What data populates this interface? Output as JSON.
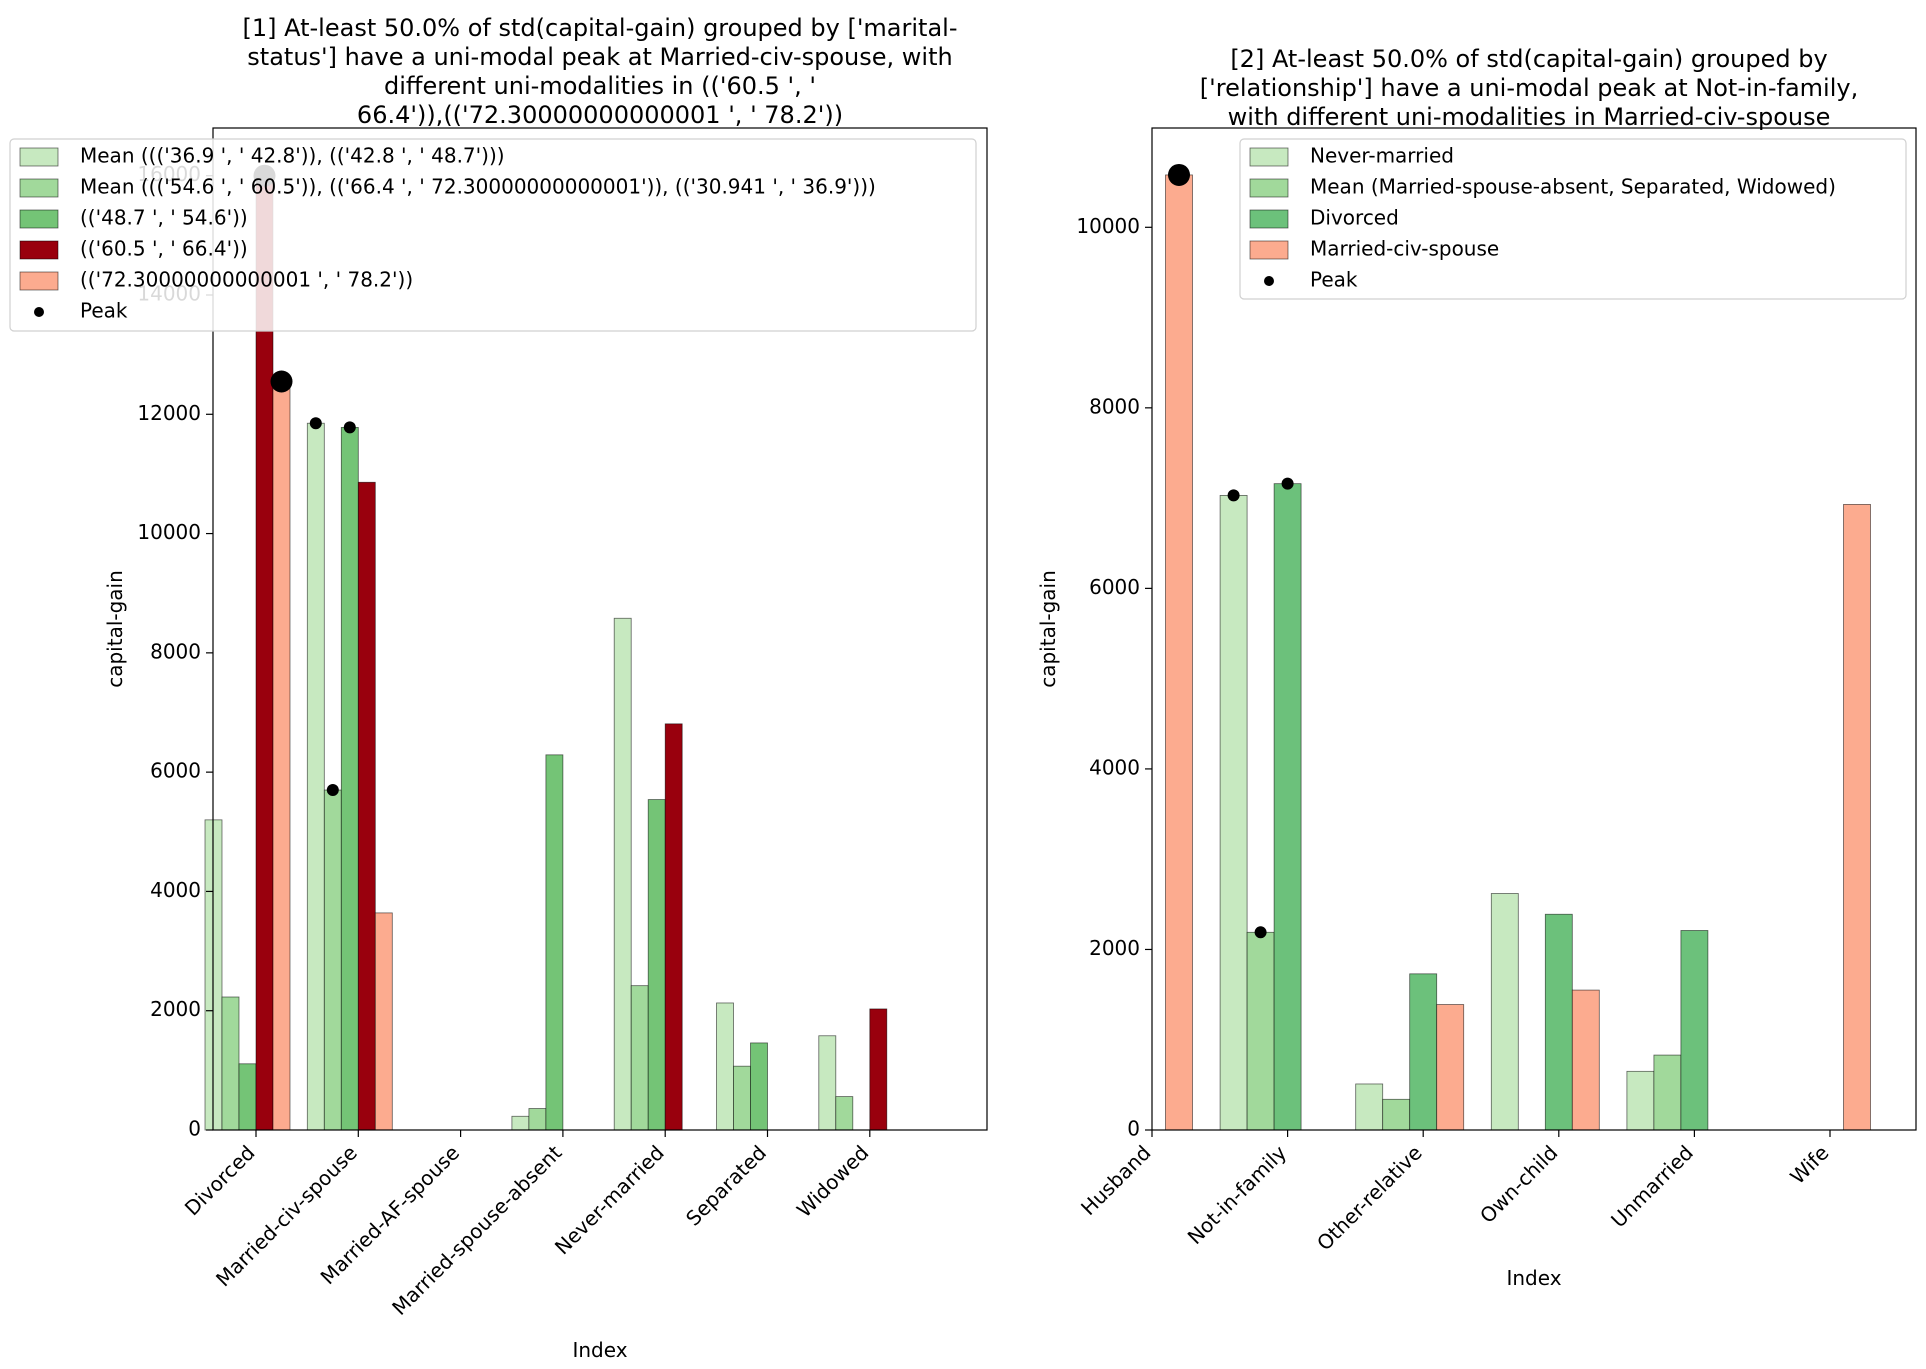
{
  "chart_data": [
    {
      "type": "bar",
      "title": "[1] At-least 50.0% of std(capital-gain) grouped by ['marital-status'] have a uni-modal peak at Married-civ-spouse, with different uni-modalities in (('60.5 ', ' 66.4')),(('72.30000000000001 ', ' 78.2'))",
      "title_lines": [
        "[1] At-least 50.0% of std(capital-gain) grouped by ['marital-",
        "status'] have a uni-modal peak at Married-civ-spouse, with",
        "different uni-modalities in (('60.5 ', '",
        "66.4')),(('72.30000000000001 ', ' 78.2'))"
      ],
      "xlabel": "Index",
      "ylabel": "capital-gain",
      "ylim": [
        0,
        16800
      ],
      "yticks": [
        0,
        2000,
        4000,
        6000,
        8000,
        10000,
        12000,
        14000,
        16000
      ],
      "legend_placement": "upper-left",
      "categories": [
        "Divorced",
        "Married-civ-spouse",
        "Married-AF-spouse",
        "Married-spouse-absent",
        "Never-married",
        "Separated",
        "Widowed"
      ],
      "series": [
        {
          "name": "Mean ((('36.9 ', ' 42.8')), (('42.8 ', ' 48.7')))",
          "color": "#c7e9c0",
          "values": [
            5200,
            11850,
            0,
            230,
            8580,
            2130,
            1580
          ]
        },
        {
          "name": "Mean ((('54.6 ', ' 60.5')), (('66.4 ', ' 72.30000000000001')), (('30.941 ', ' 36.9')))",
          "color": "#a1d99b",
          "values": [
            2230,
            5700,
            0,
            360,
            2420,
            1070,
            560
          ]
        },
        {
          "name": "(('48.7 ', ' 54.6'))",
          "color": "#74c476",
          "values": [
            1110,
            11780,
            0,
            6290,
            5540,
            1460,
            0
          ]
        },
        {
          "name": "(('60.5 ', ' 66.4'))",
          "color": "#99000d",
          "values": [
            16000,
            10860,
            0,
            0,
            6810,
            0,
            2030
          ]
        },
        {
          "name": "(('72.30000000000001 ', ' 78.2'))",
          "color": "#fcab8f",
          "values": [
            12550,
            3640,
            0,
            0,
            0,
            0,
            0
          ]
        }
      ],
      "peak_label": "Peak",
      "peaks": [
        {
          "category": "Divorced",
          "series": 3,
          "value": 16000,
          "size": "large"
        },
        {
          "category": "Divorced",
          "series": 4,
          "value": 12550,
          "size": "large"
        },
        {
          "category": "Married-civ-spouse",
          "series": 0,
          "value": 11850,
          "size": "small"
        },
        {
          "category": "Married-civ-spouse",
          "series": 1,
          "value": 5700,
          "size": "small"
        },
        {
          "category": "Married-civ-spouse",
          "series": 2,
          "value": 11780,
          "size": "small"
        }
      ]
    },
    {
      "type": "bar",
      "title": "[2] At-least 50.0% of std(capital-gain) grouped by ['relationship'] have a uni-modal peak at Not-in-family, with different uni-modalities in Married-civ-spouse",
      "title_lines": [
        "[2] At-least 50.0% of std(capital-gain) grouped by",
        "['relationship'] have a uni-modal peak at Not-in-family,",
        "with different uni-modalities in Married-civ-spouse"
      ],
      "xlabel": "Index",
      "ylabel": "capital-gain",
      "ylim": [
        0,
        11100
      ],
      "yticks": [
        0,
        2000,
        4000,
        6000,
        8000,
        10000
      ],
      "legend_placement": "upper-right",
      "categories": [
        "Husband",
        "Not-in-family",
        "Other-relative",
        "Own-child",
        "Unmarried",
        "Wife"
      ],
      "series": [
        {
          "name": "Never-married",
          "color": "#c7e9c0",
          "values": [
            0,
            7030,
            510,
            2620,
            650,
            0
          ]
        },
        {
          "name": "Mean (Married-spouse-absent, Separated, Widowed)",
          "color": "#a1d99b",
          "values": [
            0,
            2190,
            340,
            0,
            830,
            0
          ]
        },
        {
          "name": "Divorced",
          "color": "#6cc17b",
          "values": [
            0,
            7160,
            1730,
            2390,
            2210,
            0
          ]
        },
        {
          "name": "Married-civ-spouse",
          "color": "#fcab8f",
          "values": [
            10580,
            0,
            1390,
            1550,
            0,
            6930
          ]
        }
      ],
      "peak_label": "Peak",
      "peaks": [
        {
          "category": "Husband",
          "series": 3,
          "value": 10580,
          "size": "large"
        },
        {
          "category": "Not-in-family",
          "series": 0,
          "value": 7030,
          "size": "small"
        },
        {
          "category": "Not-in-family",
          "series": 1,
          "value": 2190,
          "size": "small"
        },
        {
          "category": "Not-in-family",
          "series": 2,
          "value": 7160,
          "size": "small"
        }
      ]
    }
  ]
}
